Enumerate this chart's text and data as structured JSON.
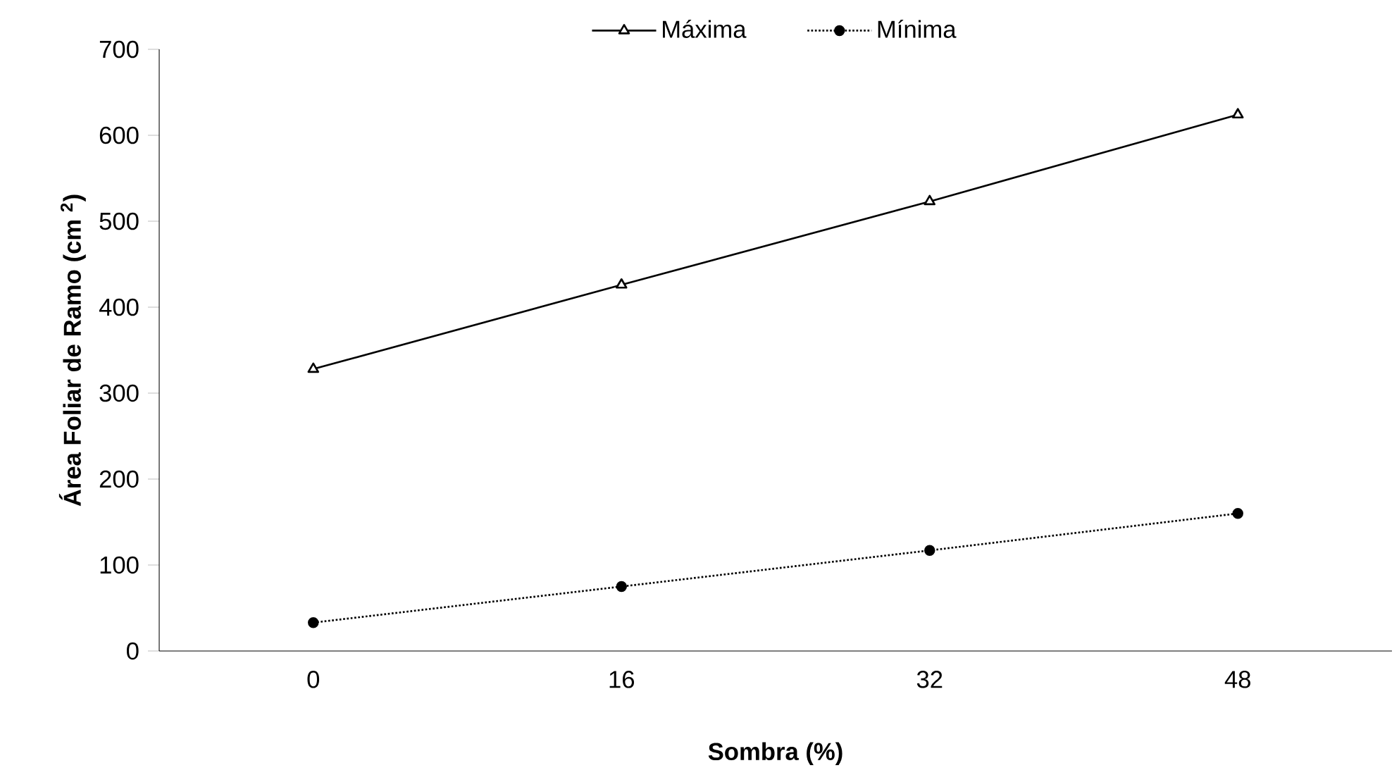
{
  "chart_data": {
    "type": "line",
    "xlabel": "Sombra (%)",
    "ylabel": "Área Foliar de Ramo (cm $^{2}$)",
    "categories": [
      "0",
      "16",
      "32",
      "48"
    ],
    "series": [
      {
        "name": "Máxima",
        "color": "#000000",
        "values": [
          328,
          426,
          523,
          624
        ],
        "marker": "triangle",
        "line_style": "solid"
      },
      {
        "name": "Mínima",
        "color": "#000000",
        "values": [
          33,
          75,
          117,
          160
        ],
        "marker": "circle",
        "line_style": "dotted"
      }
    ],
    "ylim": [
      0,
      700
    ],
    "yticks": [
      0,
      100,
      200,
      300,
      400,
      500,
      600,
      700
    ],
    "grid": false,
    "legend": "top"
  }
}
